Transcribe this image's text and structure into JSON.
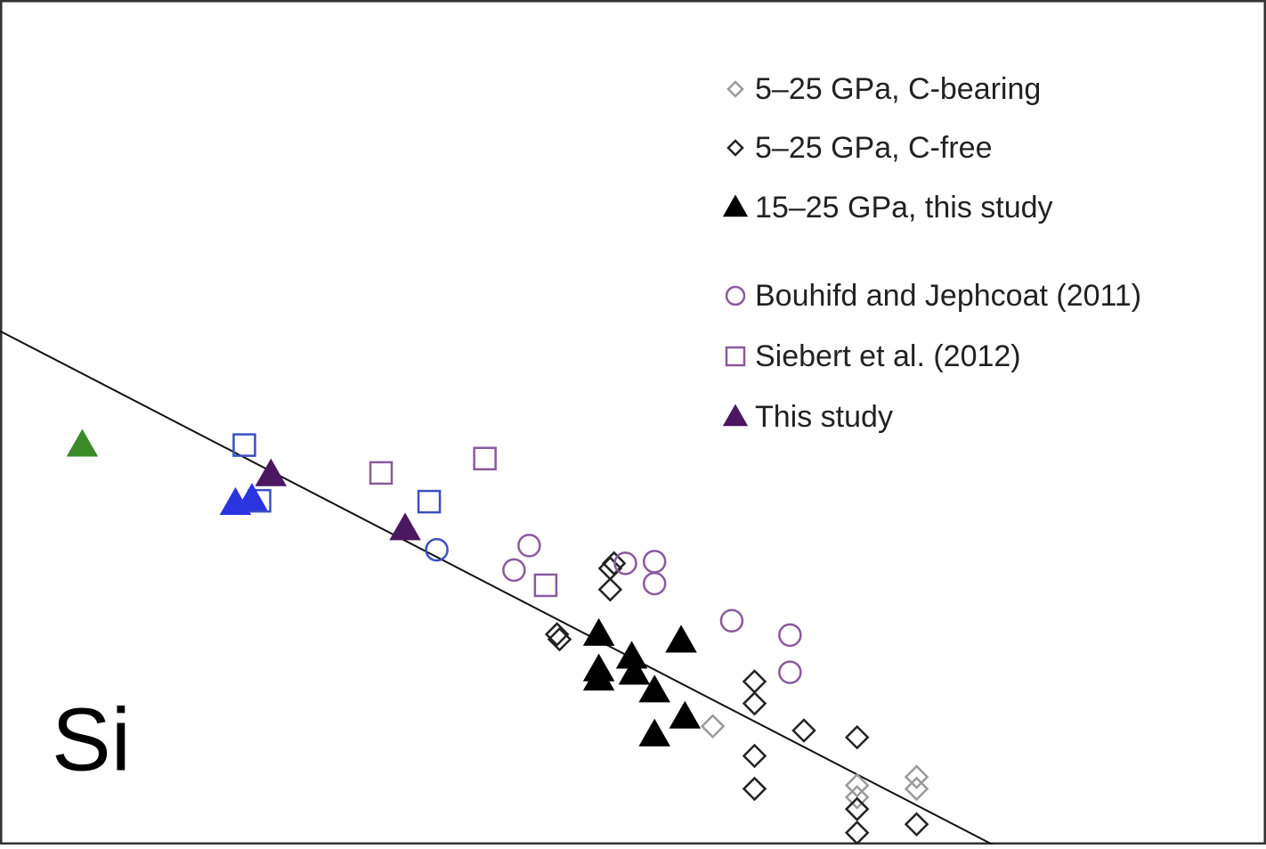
{
  "chart_data": {
    "type": "scatter",
    "annotation": "Si",
    "xlim": [
      0,
      100
    ],
    "ylim": [
      0,
      100
    ],
    "series": [
      {
        "name": "5–25 GPa, C-bearing",
        "marker": "diamond",
        "color": "#9a9a9a",
        "x": [
          72.4,
          72.4,
          67.7,
          67.7,
          56.3
        ],
        "values": [
          8.0,
          6.6,
          7.0,
          5.6,
          14.0
        ]
      },
      {
        "name": "5–25 GPa, C-free",
        "marker": "diamond",
        "color": "#222222",
        "x": [
          44.0,
          44.2,
          48.2,
          48.5,
          48.2,
          59.6,
          59.6,
          59.6,
          59.6,
          63.5,
          67.7,
          67.7,
          72.4,
          67.7
        ],
        "values": [
          24.9,
          24.3,
          32.7,
          33.3,
          30.2,
          19.3,
          16.7,
          10.5,
          6.6,
          13.5,
          12.7,
          1.4,
          2.4,
          4.2
        ]
      },
      {
        "name": "15–25 GPa, this study",
        "marker": "triangle",
        "color": "#000000",
        "x": [
          47.3,
          47.3,
          47.3,
          49.9,
          50.1,
          51.7,
          53.8,
          54.1,
          51.7
        ],
        "values": [
          24.9,
          20.7,
          19.6,
          22.2,
          20.3,
          18.2,
          24.1,
          15.1,
          13.0
        ]
      },
      {
        "name": "Bouhifd and Jephcoat (2011)",
        "marker": "circle",
        "color": "#8a5a9e",
        "colors": [
          "#3a4fc0",
          "#8a5a9e",
          "#8a5a9e",
          "#8a5a9e",
          "#8a5a9e",
          "#8a5a9e",
          "#8a5a9e",
          "#8a5a9e",
          "#8a5a9e"
        ],
        "x": [
          34.5,
          40.6,
          41.8,
          49.4,
          51.7,
          51.7,
          57.8,
          62.4,
          62.4
        ],
        "values": [
          34.9,
          32.5,
          35.4,
          33.3,
          33.5,
          30.9,
          26.5,
          24.8,
          20.4
        ]
      },
      {
        "name": "Siebert et al. (2012)",
        "marker": "square",
        "color": "#8a5a9e",
        "colors": [
          "#3a4fc0",
          "#8a5a9e",
          "#8a5a9e",
          "#3a4fc0",
          "#8a5a9e",
          "#3a4fc0"
        ],
        "x": [
          19.3,
          30.1,
          38.3,
          33.9,
          43.1,
          20.5
        ],
        "values": [
          47.3,
          44.0,
          45.7,
          40.6,
          30.7,
          40.7
        ]
      },
      {
        "name": "This study",
        "marker": "triangle",
        "color": "#4b1760",
        "colors": [
          "#3a8a2a",
          "#2a35e0",
          "#2a35e0",
          "#4b1760",
          "#4b1760"
        ],
        "x": [
          6.5,
          18.6,
          19.9,
          21.4,
          32.0
        ],
        "values": [
          47.3,
          40.4,
          40.9,
          43.8,
          37.4
        ]
      }
    ],
    "fit_line": {
      "x": [
        0,
        78.4
      ],
      "values": [
        60.8,
        0
      ]
    }
  }
}
